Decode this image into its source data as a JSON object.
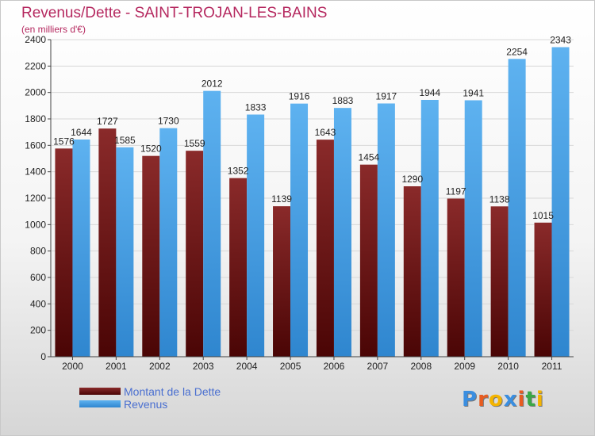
{
  "title": "Revenus/Dette - SAINT-TROJAN-LES-BAINS",
  "subtitle": "(en milliers d'€)",
  "logo": {
    "letters": [
      "P",
      "r",
      "o",
      "x",
      "i",
      "t",
      "i"
    ],
    "colors": [
      "#3a8ee0",
      "#e85c20",
      "#f4b400",
      "#3a8ee0",
      "#e85c20",
      "#3aa845",
      "#f4b400"
    ]
  },
  "colors": {
    "dette": "#6e1212",
    "revenus": "#4aa3e8"
  },
  "chart_data": {
    "type": "bar",
    "title": "Revenus/Dette - SAINT-TROJAN-LES-BAINS",
    "ylabel": "",
    "xlabel": "",
    "ylim": [
      0,
      2400
    ],
    "yticks": [
      0,
      200,
      400,
      600,
      800,
      1000,
      1200,
      1400,
      1600,
      1800,
      2000,
      2200,
      2400
    ],
    "grid": true,
    "legend": "bottom-left",
    "categories": [
      "2000",
      "2001",
      "2002",
      "2003",
      "2004",
      "2005",
      "2006",
      "2007",
      "2008",
      "2009",
      "2010",
      "2011"
    ],
    "series": [
      {
        "name": "Montant de la Dette",
        "color": "#6e1212",
        "values": [
          1576,
          1727,
          1520,
          1559,
          1352,
          1139,
          1643,
          1454,
          1290,
          1197,
          1138,
          1015
        ]
      },
      {
        "name": "Revenus",
        "color": "#4aa3e8",
        "values": [
          1644,
          1585,
          1730,
          2012,
          1833,
          1916,
          1883,
          1917,
          1944,
          1941,
          2254,
          2343
        ]
      }
    ]
  }
}
